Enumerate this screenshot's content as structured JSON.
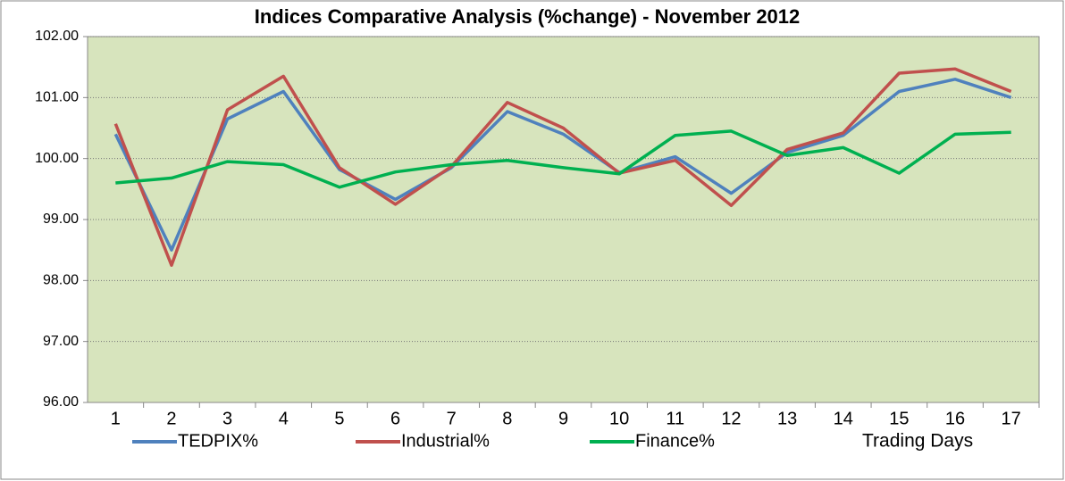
{
  "chart_data": {
    "type": "line",
    "title": "Indices Comparative Analysis (%change) - November 2012",
    "x_label": "Trading Days",
    "categories": [
      "1",
      "2",
      "3",
      "4",
      "5",
      "6",
      "7",
      "8",
      "9",
      "10",
      "11",
      "12",
      "13",
      "14",
      "15",
      "16",
      "17"
    ],
    "series": [
      {
        "name": "TEDPIX%",
        "color": "#4f81bd",
        "values": [
          100.4,
          98.5,
          100.65,
          101.1,
          99.82,
          99.33,
          99.85,
          100.77,
          100.4,
          99.77,
          100.03,
          99.43,
          100.1,
          100.38,
          101.1,
          101.3,
          101.0
        ]
      },
      {
        "name": "Industrial%",
        "color": "#c0504d",
        "values": [
          100.57,
          98.25,
          100.8,
          101.35,
          99.85,
          99.25,
          99.87,
          100.92,
          100.5,
          99.76,
          99.97,
          99.23,
          100.15,
          100.42,
          101.4,
          101.47,
          101.1
        ]
      },
      {
        "name": "Finance%",
        "color": "#00b050",
        "values": [
          99.6,
          99.68,
          99.95,
          99.9,
          99.53,
          99.78,
          99.9,
          99.97,
          99.85,
          99.75,
          100.38,
          100.45,
          100.05,
          100.18,
          99.76,
          100.4,
          100.43
        ]
      }
    ],
    "ylim": [
      96,
      102
    ],
    "yticks": [
      {
        "value": 96,
        "label": "96.00"
      },
      {
        "value": 97,
        "label": "97.00"
      },
      {
        "value": 98,
        "label": "98.00"
      },
      {
        "value": 99,
        "label": "99.00"
      },
      {
        "value": 100,
        "label": "100.00"
      },
      {
        "value": 101,
        "label": "101.00"
      },
      {
        "value": 102,
        "label": "102.00"
      }
    ],
    "grid": true,
    "legend": "bottom",
    "plot_background": "#d7e4bd"
  }
}
